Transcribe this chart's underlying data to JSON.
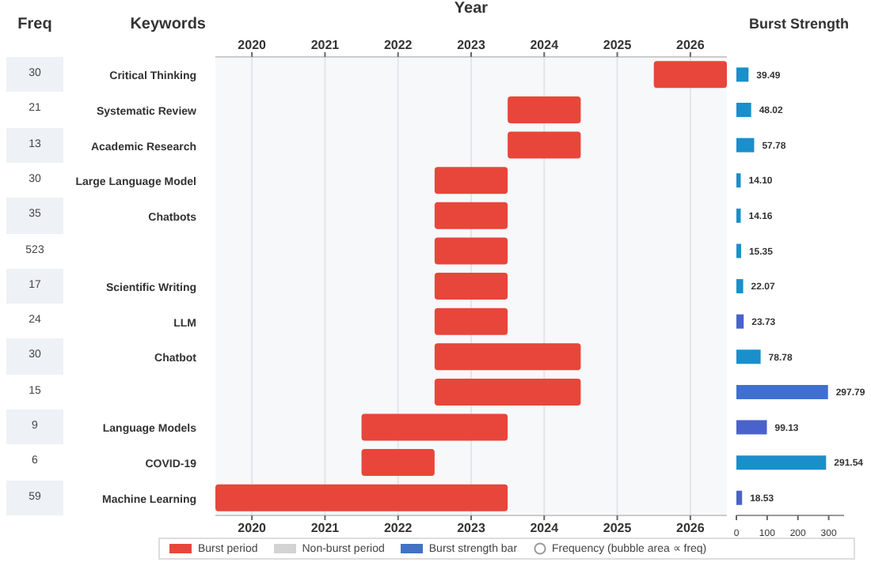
{
  "chart_data": [
    {
      "type": "other",
      "title": "Freq",
      "annotations": [
        "30",
        "21",
        "13",
        "30",
        "35",
        "523",
        "17",
        "24",
        "30",
        "15",
        "9",
        "6",
        "59"
      ]
    },
    {
      "type": "bar",
      "orientation": "horizontal",
      "x2label": "Year",
      "ylabel": "Keywords",
      "categories": [
        "Critical Thinking",
        "Systematic Review",
        "Academic Research",
        "Large Language Model",
        "Chatbots",
        null,
        "Scientific Writing",
        "LLM",
        "Chatbot",
        null,
        "Language Models",
        "COVID-19",
        "Machine Learning"
      ],
      "series": [
        {
          "name": "Burst period",
          "color": "#e8463a",
          "base": [
            2025.5,
            2023.5,
            2023.5,
            2022.5,
            2022.5,
            2022.5,
            2022.5,
            2022.5,
            2022.5,
            2022.5,
            2021.5,
            2021.5,
            2019.5
          ],
          "values": [
            1,
            1,
            1,
            1,
            1,
            1,
            1,
            1,
            2,
            2,
            2,
            1,
            4
          ]
        }
      ],
      "xlim": [
        2019.5,
        2026.5
      ],
      "xticks": [
        2020,
        2021,
        2022,
        2023,
        2024,
        2025,
        2026
      ],
      "x2lim": [
        2019.5,
        2026.5
      ],
      "x2ticks": [
        2020,
        2021,
        2022,
        2023,
        2024,
        2025,
        2026
      ],
      "grid": "x",
      "legend": "bottom",
      "annotations": [
        "Non-burst period",
        "Burst strength bar",
        "Frequency (bubble area ∝ freq)"
      ]
    },
    {
      "type": "bar",
      "orientation": "horizontal",
      "title": "Burst Strength",
      "categories": [
        null,
        null,
        null,
        null,
        null,
        null,
        null,
        null,
        null,
        null,
        null,
        null,
        null
      ],
      "values": [
        39.49,
        48.02,
        57.78,
        14.1,
        14.16,
        15.35,
        22.07,
        23.73,
        78.78,
        297.79,
        99.13,
        291.54,
        18.53
      ],
      "value_labels": [
        "39.49",
        "48.02",
        "57.78",
        "14.10",
        "14.16",
        "15.35",
        "22.07",
        "23.73",
        "78.78",
        "297.79",
        "99.13",
        "291.54",
        "18.53"
      ],
      "colors": [
        "#1a8fcb",
        "#1a8fcb",
        "#1a8fcb",
        "#1a8fcb",
        "#1a8fcb",
        "#1a8fcb",
        "#1a8fcb",
        "#4a62cc",
        "#1a8fcb",
        "#3f6fd0",
        "#4a62cc",
        "#1a8fcb",
        "#4a62cc"
      ],
      "xlim": [
        0,
        350
      ],
      "xticks": [
        0,
        100,
        200,
        300
      ]
    }
  ]
}
